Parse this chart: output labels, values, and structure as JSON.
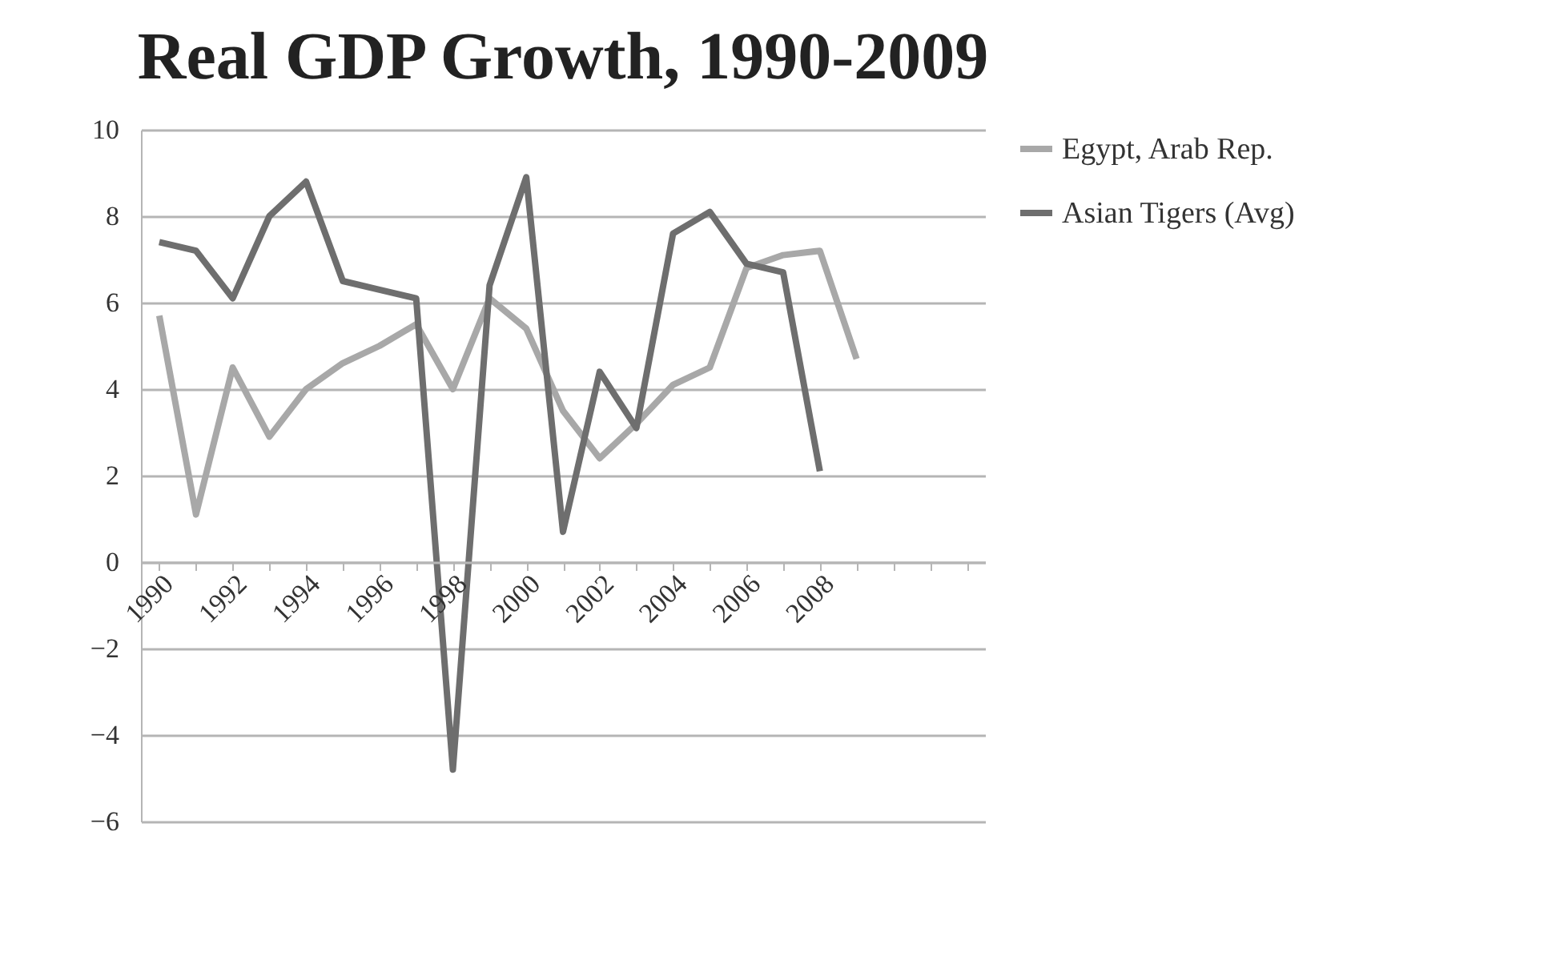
{
  "chart_data": {
    "type": "line",
    "title": "Real GDP Growth, 1990-2009",
    "categories": [
      "1990",
      null,
      "1992",
      null,
      "1994",
      null,
      "1996",
      null,
      "1998",
      null,
      "2000",
      null,
      "2002",
      null,
      "2004",
      null,
      "2006",
      null,
      "2008",
      null,
      null,
      null,
      null
    ],
    "series": [
      {
        "name": "Egypt, Arab Rep.",
        "color": "#a8a8a8",
        "values": [
          5.7,
          1.1,
          4.5,
          2.9,
          4.0,
          4.6,
          5.0,
          5.5,
          4.0,
          6.1,
          5.4,
          3.5,
          2.4,
          3.2,
          4.1,
          4.5,
          6.8,
          7.1,
          7.2,
          4.7,
          null,
          null,
          null
        ]
      },
      {
        "name": "Asian Tigers (Avg)",
        "color": "#6e6e6e",
        "values": [
          7.4,
          7.2,
          6.1,
          8.0,
          8.8,
          6.5,
          6.3,
          6.1,
          -4.8,
          6.4,
          8.9,
          0.7,
          4.4,
          3.1,
          7.6,
          8.1,
          6.9,
          6.7,
          2.1,
          null,
          null,
          null,
          null
        ]
      }
    ],
    "ylim": [
      -6,
      10
    ],
    "yticks": [
      -6,
      -4,
      -2,
      0,
      2,
      4,
      6,
      8,
      10
    ],
    "grid": "y",
    "legend": "right",
    "marker": "none",
    "line_style": "solid"
  }
}
